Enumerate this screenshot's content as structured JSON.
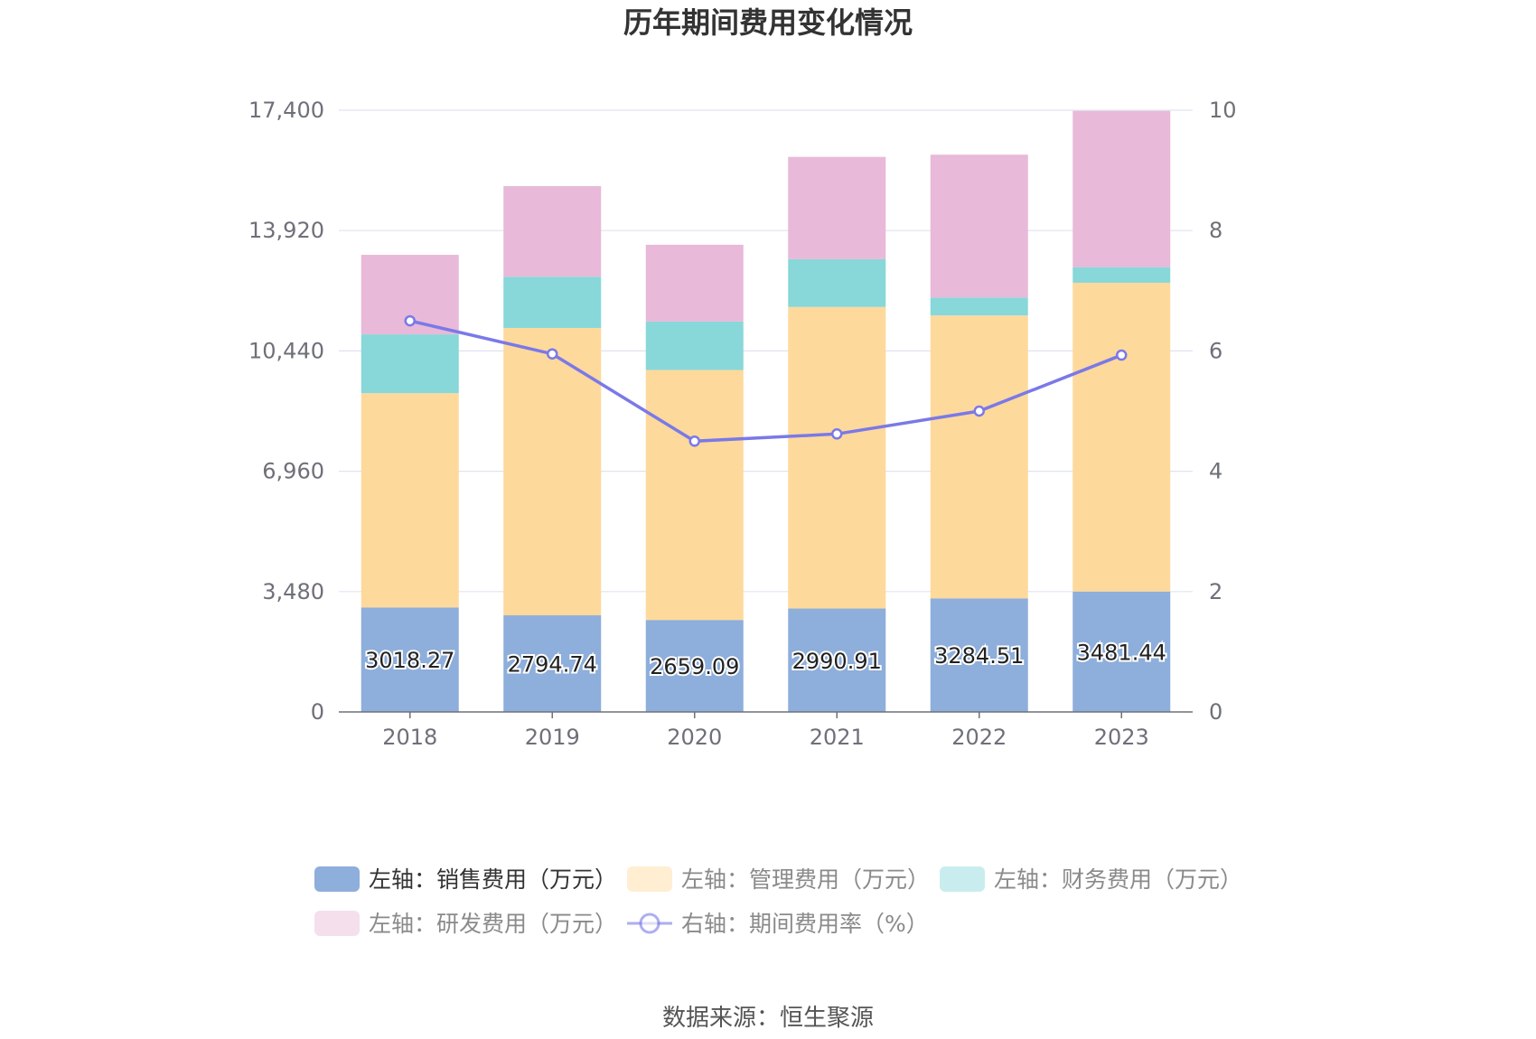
{
  "chart_data": {
    "type": "bar",
    "title": "历年期间费用变化情况",
    "categories": [
      "2018",
      "2019",
      "2020",
      "2021",
      "2022",
      "2023"
    ],
    "y_left": {
      "min": 0,
      "max": 17400,
      "ticks": [
        "0",
        "3,480",
        "6,960",
        "10,440",
        "13,920",
        "17,400"
      ]
    },
    "y_right": {
      "min": 0,
      "max": 10,
      "ticks": [
        "0",
        "2",
        "4",
        "6",
        "8",
        "10"
      ]
    },
    "stacked": true,
    "grid": true,
    "legend_position": "bottom",
    "series": [
      {
        "name": "左轴：销售费用（万元）",
        "axis": "left",
        "type": "bar",
        "color": "#8eaedb",
        "values": [
          3018.27,
          2794.74,
          2659.09,
          2990.91,
          3284.51,
          3481.44
        ],
        "labels": [
          "3018.27",
          "2794.74",
          "2659.09",
          "2990.91",
          "3284.51",
          "3481.44"
        ]
      },
      {
        "name": "左轴：管理费用（万元）",
        "axis": "left",
        "type": "bar",
        "color": "#fed99c",
        "values": [
          6200,
          8310,
          7230,
          8720,
          8180,
          8930
        ]
      },
      {
        "name": "左轴：财务费用（万元）",
        "axis": "left",
        "type": "bar",
        "color": "#88d7d9",
        "values": [
          1700,
          1480,
          1400,
          1380,
          520,
          450
        ]
      },
      {
        "name": "左轴：研发费用（万元）",
        "axis": "left",
        "type": "bar",
        "color": "#e8b9d8",
        "values": [
          2300,
          2620,
          2220,
          2960,
          4130,
          4520
        ]
      },
      {
        "name": "右轴：期间费用率（%）",
        "axis": "right",
        "type": "line",
        "color": "#7a79e8",
        "values": [
          6.5,
          5.95,
          4.5,
          4.62,
          5.0,
          5.93
        ]
      }
    ]
  },
  "source": "数据来源：恒生聚源"
}
